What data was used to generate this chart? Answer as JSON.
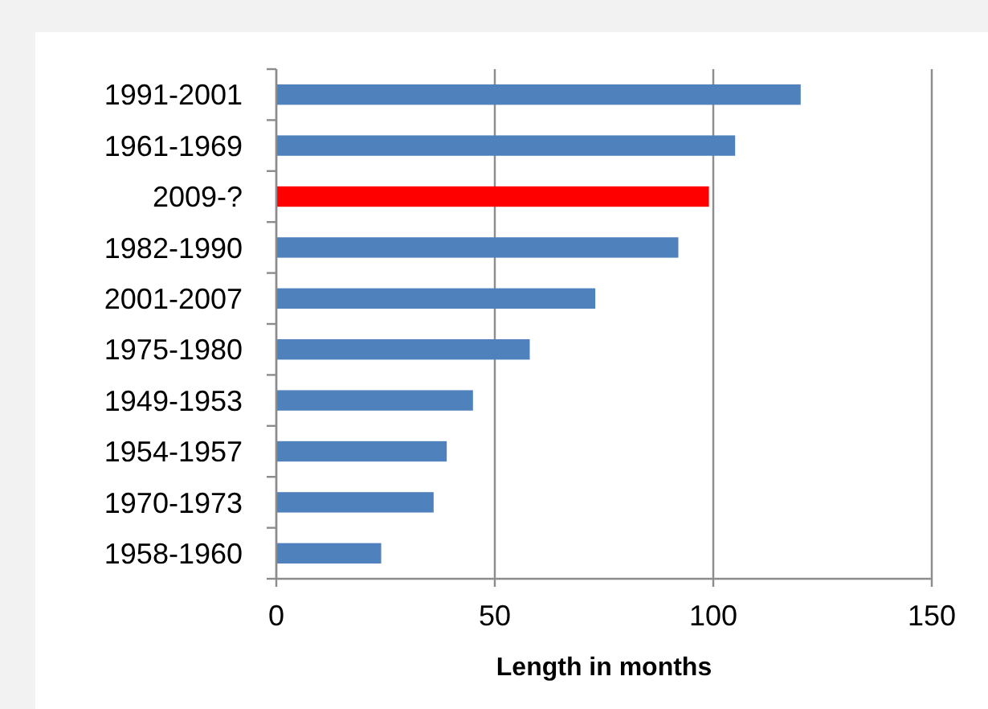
{
  "chart_data": {
    "type": "bar",
    "orientation": "horizontal",
    "xlabel": "Length in months",
    "categories": [
      "1991-2001",
      "1961-1969",
      "2009-?",
      "1982-1990",
      "2001-2007",
      "1975-1980",
      "1949-1953",
      "1954-1957",
      "1970-1973",
      "1958-1960"
    ],
    "values": [
      120,
      105,
      99,
      92,
      73,
      58,
      45,
      39,
      36,
      24
    ],
    "colors": [
      "#4f81bd",
      "#4f81bd",
      "#ff0000",
      "#4f81bd",
      "#4f81bd",
      "#4f81bd",
      "#4f81bd",
      "#4f81bd",
      "#4f81bd",
      "#4f81bd"
    ],
    "xlim": [
      0,
      150
    ],
    "xticks": [
      0,
      50,
      100,
      150
    ],
    "grid": "x"
  }
}
